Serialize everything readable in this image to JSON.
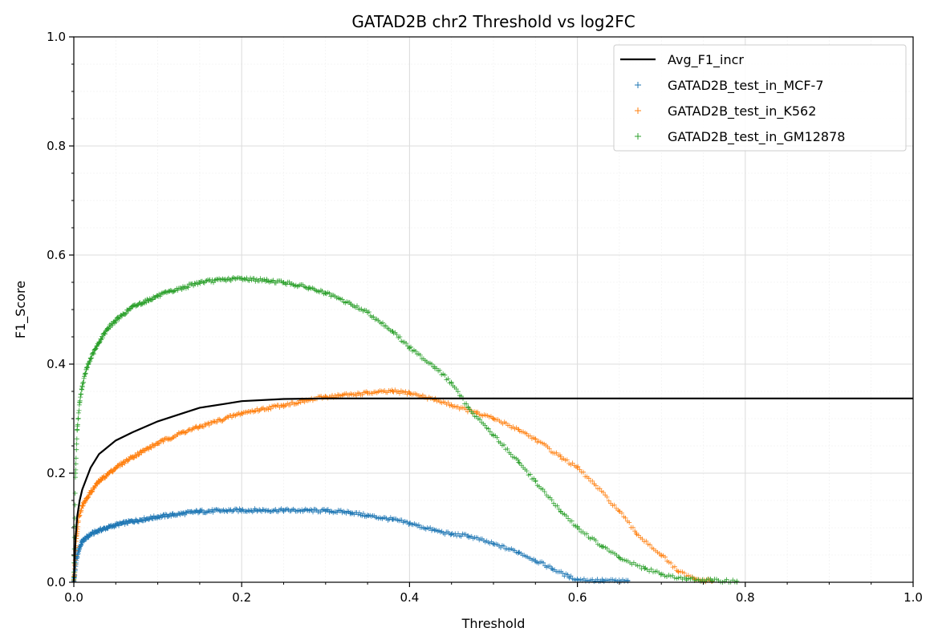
{
  "chart_data": {
    "type": "scatter",
    "title": "GATAD2B chr2 Threshold vs log2FC",
    "xlabel": "Threshold",
    "ylabel": "F1_Score",
    "xlim": [
      0.0,
      1.0
    ],
    "ylim": [
      0.0,
      1.0
    ],
    "x_ticks": [
      "0.0",
      "0.2",
      "0.4",
      "0.6",
      "0.8",
      "1.0"
    ],
    "y_ticks": [
      "0.0",
      "0.2",
      "0.4",
      "0.6",
      "0.8",
      "1.0"
    ],
    "grid": true,
    "legend_position": "top-right",
    "series": [
      {
        "name": "Avg_F1_incr",
        "kind": "line",
        "color": "#000000",
        "points": [
          [
            0.0,
            0.0
          ],
          [
            0.002,
            0.08
          ],
          [
            0.004,
            0.12
          ],
          [
            0.007,
            0.15
          ],
          [
            0.01,
            0.17
          ],
          [
            0.02,
            0.21
          ],
          [
            0.03,
            0.235
          ],
          [
            0.05,
            0.26
          ],
          [
            0.07,
            0.275
          ],
          [
            0.1,
            0.295
          ],
          [
            0.13,
            0.31
          ],
          [
            0.15,
            0.32
          ],
          [
            0.18,
            0.327
          ],
          [
            0.2,
            0.332
          ],
          [
            0.25,
            0.336
          ],
          [
            0.3,
            0.337
          ],
          [
            0.4,
            0.337
          ],
          [
            0.6,
            0.337
          ],
          [
            0.8,
            0.337
          ],
          [
            1.0,
            0.337
          ]
        ]
      },
      {
        "name": "GATAD2B_test_in_MCF-7",
        "kind": "scatter",
        "marker": "+",
        "color": "#1f77b4",
        "points": [
          [
            0.0,
            0.0
          ],
          [
            0.003,
            0.04
          ],
          [
            0.006,
            0.06
          ],
          [
            0.01,
            0.075
          ],
          [
            0.02,
            0.088
          ],
          [
            0.03,
            0.095
          ],
          [
            0.05,
            0.105
          ],
          [
            0.07,
            0.112
          ],
          [
            0.1,
            0.12
          ],
          [
            0.13,
            0.126
          ],
          [
            0.15,
            0.13
          ],
          [
            0.2,
            0.132
          ],
          [
            0.25,
            0.132
          ],
          [
            0.3,
            0.131
          ],
          [
            0.33,
            0.128
          ],
          [
            0.35,
            0.122
          ],
          [
            0.38,
            0.115
          ],
          [
            0.4,
            0.108
          ],
          [
            0.43,
            0.095
          ],
          [
            0.45,
            0.088
          ],
          [
            0.47,
            0.085
          ],
          [
            0.5,
            0.07
          ],
          [
            0.53,
            0.055
          ],
          [
            0.55,
            0.04
          ],
          [
            0.57,
            0.025
          ],
          [
            0.59,
            0.01
          ],
          [
            0.6,
            0.005
          ],
          [
            0.63,
            0.003
          ],
          [
            0.66,
            0.002
          ]
        ]
      },
      {
        "name": "GATAD2B_test_in_K562",
        "kind": "scatter",
        "marker": "+",
        "color": "#ff7f0e",
        "points": [
          [
            0.0,
            0.0
          ],
          [
            0.003,
            0.08
          ],
          [
            0.006,
            0.12
          ],
          [
            0.01,
            0.14
          ],
          [
            0.02,
            0.165
          ],
          [
            0.03,
            0.185
          ],
          [
            0.05,
            0.21
          ],
          [
            0.07,
            0.23
          ],
          [
            0.1,
            0.255
          ],
          [
            0.13,
            0.275
          ],
          [
            0.15,
            0.285
          ],
          [
            0.2,
            0.31
          ],
          [
            0.25,
            0.325
          ],
          [
            0.3,
            0.34
          ],
          [
            0.35,
            0.347
          ],
          [
            0.38,
            0.35
          ],
          [
            0.4,
            0.347
          ],
          [
            0.43,
            0.335
          ],
          [
            0.45,
            0.325
          ],
          [
            0.48,
            0.31
          ],
          [
            0.5,
            0.3
          ],
          [
            0.53,
            0.28
          ],
          [
            0.55,
            0.262
          ],
          [
            0.58,
            0.23
          ],
          [
            0.6,
            0.21
          ],
          [
            0.62,
            0.18
          ],
          [
            0.65,
            0.13
          ],
          [
            0.67,
            0.09
          ],
          [
            0.7,
            0.05
          ],
          [
            0.72,
            0.02
          ],
          [
            0.74,
            0.005
          ],
          [
            0.76,
            0.002
          ]
        ]
      },
      {
        "name": "GATAD2B_test_in_GM12878",
        "kind": "scatter",
        "marker": "+",
        "color": "#2ca02c",
        "points": [
          [
            0.0,
            0.0
          ],
          [
            0.002,
            0.2
          ],
          [
            0.004,
            0.28
          ],
          [
            0.007,
            0.33
          ],
          [
            0.01,
            0.36
          ],
          [
            0.015,
            0.39
          ],
          [
            0.02,
            0.41
          ],
          [
            0.03,
            0.44
          ],
          [
            0.04,
            0.465
          ],
          [
            0.05,
            0.48
          ],
          [
            0.07,
            0.505
          ],
          [
            0.1,
            0.525
          ],
          [
            0.13,
            0.54
          ],
          [
            0.15,
            0.55
          ],
          [
            0.18,
            0.555
          ],
          [
            0.2,
            0.557
          ],
          [
            0.23,
            0.553
          ],
          [
            0.25,
            0.55
          ],
          [
            0.28,
            0.54
          ],
          [
            0.3,
            0.53
          ],
          [
            0.33,
            0.51
          ],
          [
            0.35,
            0.495
          ],
          [
            0.38,
            0.46
          ],
          [
            0.4,
            0.43
          ],
          [
            0.43,
            0.395
          ],
          [
            0.45,
            0.365
          ],
          [
            0.47,
            0.32
          ],
          [
            0.5,
            0.27
          ],
          [
            0.53,
            0.22
          ],
          [
            0.55,
            0.185
          ],
          [
            0.58,
            0.13
          ],
          [
            0.6,
            0.1
          ],
          [
            0.63,
            0.065
          ],
          [
            0.65,
            0.045
          ],
          [
            0.68,
            0.025
          ],
          [
            0.7,
            0.015
          ],
          [
            0.73,
            0.006
          ],
          [
            0.76,
            0.003
          ],
          [
            0.79,
            0.002
          ]
        ]
      }
    ]
  }
}
